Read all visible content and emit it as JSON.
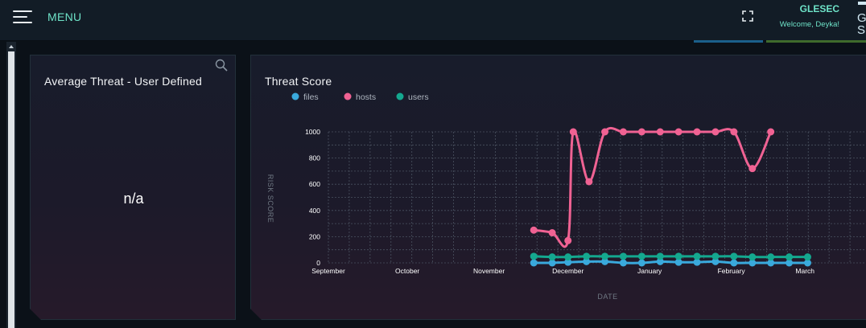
{
  "header": {
    "menu_label": "MENU",
    "brand_name": "GLESEC",
    "welcome_text": "Welcome, Deyka!",
    "logo_text": "G S"
  },
  "colors": {
    "accent": "#6ee3c8",
    "files": "#3aa9dc",
    "hosts": "#f06293",
    "users": "#14a88f"
  },
  "left_panel": {
    "title": "Average Threat - User Defined",
    "value": "n/a"
  },
  "right_panel": {
    "title": "Threat Score"
  },
  "chart_data": {
    "type": "line",
    "title": "Threat Score",
    "xlabel": "DATE",
    "ylabel": "RISK SCORE",
    "ylim": [
      0,
      1000
    ],
    "yticks": [
      0,
      200,
      400,
      600,
      800,
      1000
    ],
    "xlim": [
      "2017-09-01",
      "2018-03-26"
    ],
    "xticks": [
      {
        "label": "September",
        "date": "2017-09-01"
      },
      {
        "label": "October",
        "date": "2017-10-01"
      },
      {
        "label": "November",
        "date": "2017-11-01"
      },
      {
        "label": "December",
        "date": "2017-12-01"
      },
      {
        "label": "January",
        "date": "2018-01-01"
      },
      {
        "label": "February",
        "date": "2018-02-01"
      },
      {
        "label": "March",
        "date": "2018-03-01"
      }
    ],
    "grid": true,
    "legend_position": "top-left",
    "series": [
      {
        "name": "files",
        "color": "#3aa9dc",
        "points": [
          {
            "x": "2017-11-18",
            "y": 0
          },
          {
            "x": "2017-11-25",
            "y": 0
          },
          {
            "x": "2017-12-01",
            "y": 5
          },
          {
            "x": "2017-12-08",
            "y": 10
          },
          {
            "x": "2017-12-15",
            "y": 10
          },
          {
            "x": "2017-12-22",
            "y": 0
          },
          {
            "x": "2017-12-29",
            "y": 0
          },
          {
            "x": "2018-01-05",
            "y": 10
          },
          {
            "x": "2018-01-12",
            "y": 5
          },
          {
            "x": "2018-01-19",
            "y": 5
          },
          {
            "x": "2018-01-26",
            "y": 10
          },
          {
            "x": "2018-02-02",
            "y": 0
          },
          {
            "x": "2018-02-09",
            "y": 0
          },
          {
            "x": "2018-02-16",
            "y": 0
          },
          {
            "x": "2018-02-23",
            "y": 0
          },
          {
            "x": "2018-03-02",
            "y": 0
          }
        ]
      },
      {
        "name": "hosts",
        "color": "#f06293",
        "points": [
          {
            "x": "2017-11-18",
            "y": 250
          },
          {
            "x": "2017-11-25",
            "y": 230
          },
          {
            "x": "2017-12-01",
            "y": 170
          },
          {
            "x": "2017-12-03",
            "y": 1000
          },
          {
            "x": "2017-12-09",
            "y": 620
          },
          {
            "x": "2017-12-15",
            "y": 1000
          },
          {
            "x": "2017-12-22",
            "y": 1000
          },
          {
            "x": "2017-12-29",
            "y": 1000
          },
          {
            "x": "2018-01-05",
            "y": 1000
          },
          {
            "x": "2018-01-12",
            "y": 1000
          },
          {
            "x": "2018-01-19",
            "y": 1000
          },
          {
            "x": "2018-01-26",
            "y": 1000
          },
          {
            "x": "2018-02-02",
            "y": 1000
          },
          {
            "x": "2018-02-09",
            "y": 720
          },
          {
            "x": "2018-02-16",
            "y": 1000
          }
        ]
      },
      {
        "name": "users",
        "color": "#14a88f",
        "points": [
          {
            "x": "2017-11-18",
            "y": 50
          },
          {
            "x": "2017-11-25",
            "y": 45
          },
          {
            "x": "2017-12-01",
            "y": 45
          },
          {
            "x": "2017-12-08",
            "y": 50
          },
          {
            "x": "2017-12-15",
            "y": 50
          },
          {
            "x": "2017-12-22",
            "y": 50
          },
          {
            "x": "2017-12-29",
            "y": 50
          },
          {
            "x": "2018-01-05",
            "y": 50
          },
          {
            "x": "2018-01-12",
            "y": 50
          },
          {
            "x": "2018-01-19",
            "y": 50
          },
          {
            "x": "2018-01-26",
            "y": 50
          },
          {
            "x": "2018-02-02",
            "y": 50
          },
          {
            "x": "2018-02-09",
            "y": 45
          },
          {
            "x": "2018-02-16",
            "y": 45
          },
          {
            "x": "2018-02-23",
            "y": 45
          },
          {
            "x": "2018-03-02",
            "y": 45
          }
        ]
      }
    ]
  }
}
